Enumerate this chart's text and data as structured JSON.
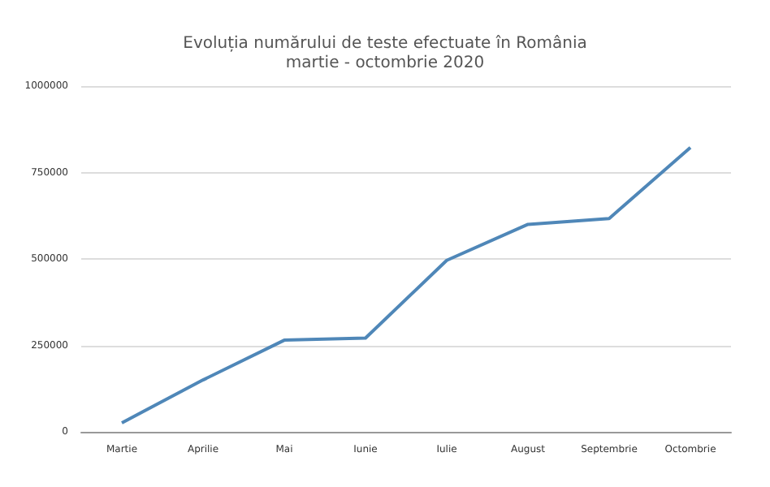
{
  "chart_data": {
    "type": "line",
    "title": "Evoluția numărului de teste efectuate în România\nmartie - octombrie 2020",
    "categories": [
      "Martie",
      "Aprilie",
      "Mai",
      "Iunie",
      "Iulie",
      "August",
      "Septembrie",
      "Octombrie"
    ],
    "series": [
      {
        "color": "#4f87b8",
        "values": [
          26000,
          150000,
          265000,
          271000,
          496000,
          600000,
          617000,
          822000
        ]
      }
    ],
    "ylim": [
      0,
      1000000
    ],
    "yticks": [
      0,
      250000,
      500000,
      750000,
      1000000
    ],
    "grid": "y",
    "marker": "none",
    "line_style": "solid"
  }
}
